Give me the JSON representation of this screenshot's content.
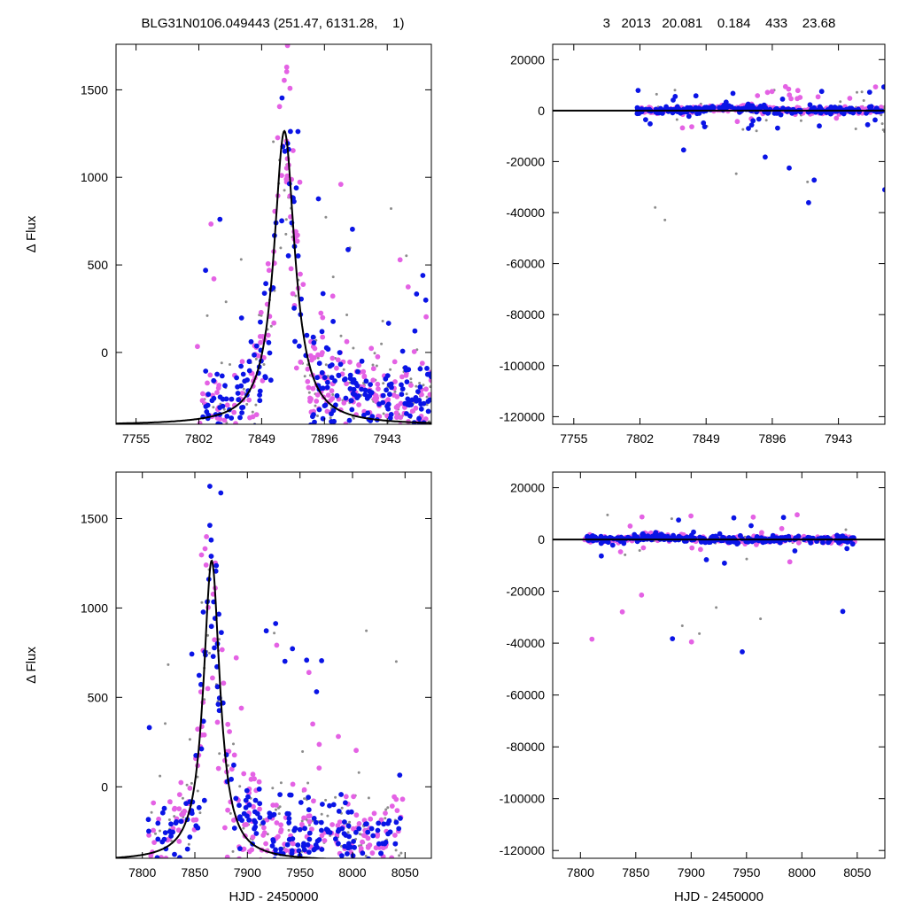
{
  "header": {
    "left": "BLG31N0106.049443 (251.47, 6131.28,    1)",
    "right": "3   2013   20.081    0.184    433    23.68"
  },
  "colors": {
    "magenta": "#e462e4",
    "blue": "#0a14e6",
    "gray": "#8c8c8c",
    "model": "#000000"
  },
  "chart_data": [
    {
      "panel": "top-left",
      "type": "scatter",
      "ylabel": "Δ Flux",
      "xlabel": "",
      "xlim": [
        7740,
        7976
      ],
      "ylim": [
        -410,
        1760
      ],
      "xticks": [
        7755,
        7802,
        7849,
        7896,
        7943
      ],
      "yticks": [
        0,
        500,
        1000,
        1500
      ],
      "model": {
        "t0": 7866,
        "amp": 1680,
        "tau": 9.5,
        "base": -415
      },
      "points": {
        "seed": 11,
        "xrange": [
          7800,
          7976
        ]
      }
    },
    {
      "panel": "top-right",
      "type": "scatter",
      "ylabel": "",
      "xlabel": "",
      "xlim": [
        7740,
        7976
      ],
      "ylim": [
        -123000,
        26000
      ],
      "xticks": [
        7755,
        7802,
        7849,
        7896,
        7943
      ],
      "yticks": [
        20000,
        0,
        -20000,
        -40000,
        -60000,
        -80000,
        -100000,
        -120000
      ],
      "model": {
        "t0": 7866,
        "amp": 1680,
        "tau": 9.5,
        "base": -415
      },
      "points": {
        "seed": 23,
        "xrange": [
          7800,
          7976
        ]
      }
    },
    {
      "panel": "bottom-left",
      "type": "scatter",
      "ylabel": "Δ Flux",
      "xlabel": "HJD - 2450000",
      "xlim": [
        7775,
        8075
      ],
      "ylim": [
        -400,
        1760
      ],
      "xticks": [
        7800,
        7850,
        7900,
        7950,
        8000,
        8050
      ],
      "yticks": [
        0,
        500,
        1000,
        1500
      ],
      "model": {
        "t0": 7866,
        "amp": 1680,
        "tau": 9.5,
        "base": -415
      },
      "points": {
        "seed": 37,
        "xrange": [
          7803,
          8048
        ]
      }
    },
    {
      "panel": "bottom-right",
      "type": "scatter",
      "ylabel": "",
      "xlabel": "HJD - 2450000",
      "xlim": [
        7775,
        8075
      ],
      "ylim": [
        -123000,
        26000
      ],
      "xticks": [
        7800,
        7850,
        7900,
        7950,
        8000,
        8050
      ],
      "yticks": [
        20000,
        0,
        -20000,
        -40000,
        -60000,
        -80000,
        -100000,
        -120000
      ],
      "model": {
        "t0": 7866,
        "amp": 1680,
        "tau": 9.5,
        "base": -415
      },
      "points": {
        "seed": 53,
        "xrange": [
          7803,
          8048
        ]
      }
    }
  ]
}
